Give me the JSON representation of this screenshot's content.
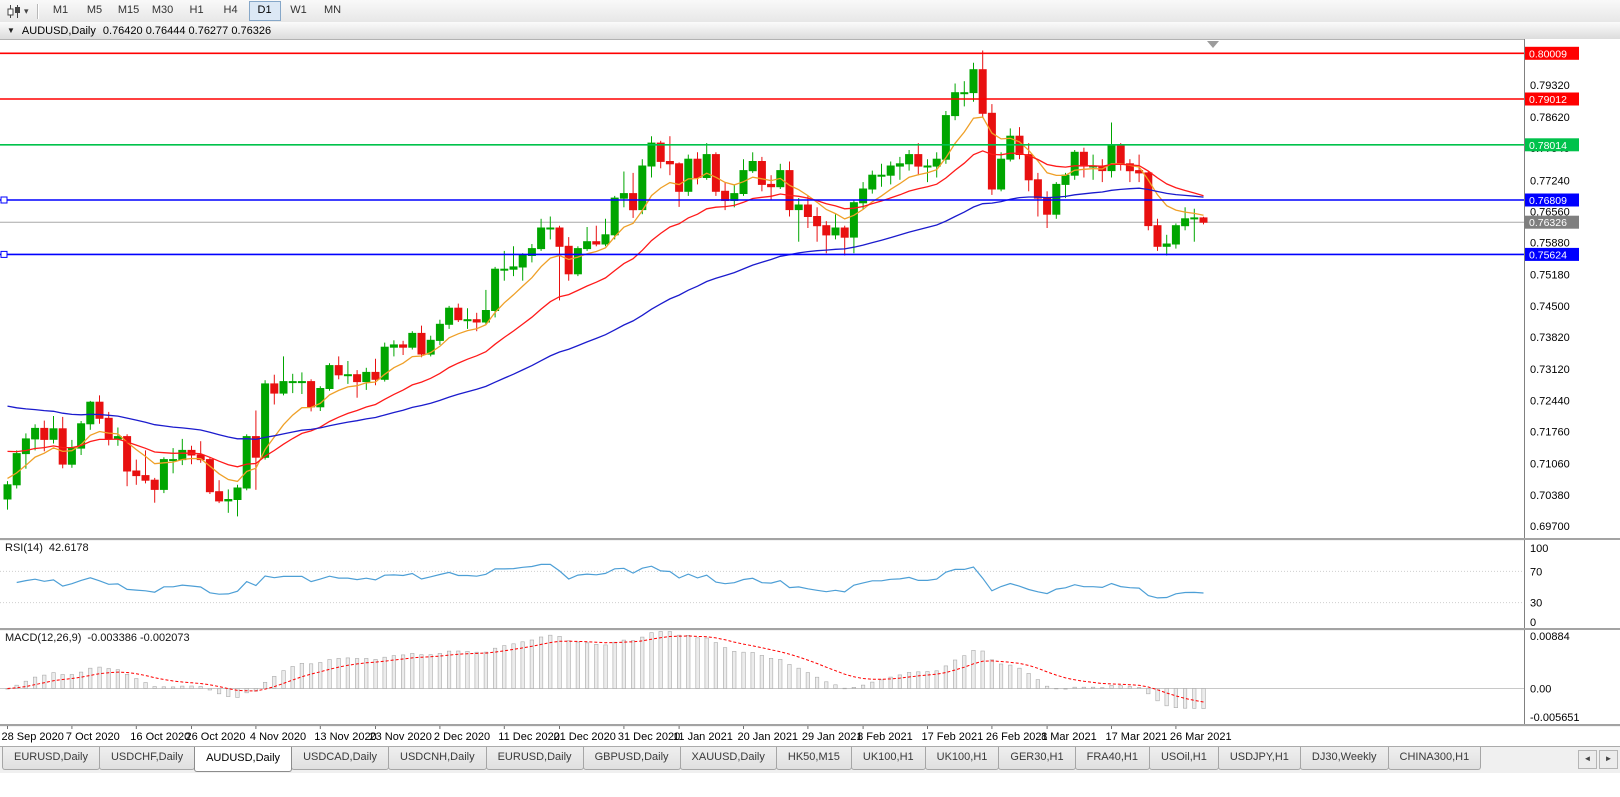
{
  "toolbar": {
    "timeframes": [
      "M1",
      "M5",
      "M15",
      "M30",
      "H1",
      "H4",
      "D1",
      "W1",
      "MN"
    ],
    "active_timeframe": "D1"
  },
  "chart_window": {
    "title": "AUDUSD,Daily",
    "ohlc_text": "0.76420 0.76444 0.76277 0.76326"
  },
  "chart_data": {
    "type": "candlestick",
    "symbol": "AUDUSD",
    "period": "Daily",
    "price_range": {
      "max": 0.8032,
      "min": 0.6944
    },
    "price_axis_ticks": [
      "0.79320",
      "0.78620",
      "0.77940",
      "0.77240",
      "0.76560",
      "0.75880",
      "0.75180",
      "0.74500",
      "0.73820",
      "0.73120",
      "0.72440",
      "0.71760",
      "0.71060",
      "0.70380",
      "0.69700"
    ],
    "x_axis_labels": [
      {
        "index": 0,
        "text": "28 Sep 2020"
      },
      {
        "index": 7,
        "text": "7 Oct 2020"
      },
      {
        "index": 14,
        "text": "16 Oct 2020"
      },
      {
        "index": 20,
        "text": "26 Oct 2020"
      },
      {
        "index": 27,
        "text": "4 Nov 2020"
      },
      {
        "index": 34,
        "text": "13 Nov 2020"
      },
      {
        "index": 40,
        "text": "23 Nov 2020"
      },
      {
        "index": 47,
        "text": "2 Dec 2020"
      },
      {
        "index": 54,
        "text": "11 Dec 2020"
      },
      {
        "index": 60,
        "text": "21 Dec 2020"
      },
      {
        "index": 67,
        "text": "31 Dec 2020"
      },
      {
        "index": 73,
        "text": "11 Jan 2021"
      },
      {
        "index": 80,
        "text": "20 Jan 2021"
      },
      {
        "index": 87,
        "text": "29 Jan 2021"
      },
      {
        "index": 93,
        "text": "8 Feb 2021"
      },
      {
        "index": 100,
        "text": "17 Feb 2021"
      },
      {
        "index": 107,
        "text": "26 Feb 2021"
      },
      {
        "index": 113,
        "text": "8 Mar 2021"
      },
      {
        "index": 120,
        "text": "17 Mar 2021"
      },
      {
        "index": 127,
        "text": "26 Mar 2021"
      }
    ],
    "horizontal_levels": [
      {
        "price": 0.80009,
        "label": "0.80009",
        "color": "#FF0000",
        "handles": false
      },
      {
        "price": 0.79012,
        "label": "0.79012",
        "color": "#FF0000",
        "handles": false
      },
      {
        "price": 0.78014,
        "label": "0.78014",
        "color": "#00C24B",
        "handles": false
      },
      {
        "price": 0.76809,
        "label": "0.76809",
        "color": "#0000FF",
        "handles": true
      },
      {
        "price": 0.75624,
        "label": "0.75624",
        "color": "#0000FF",
        "handles": true
      }
    ],
    "bid_price": {
      "value": 0.76326,
      "label": "0.76326"
    },
    "moving_averages": [
      {
        "period": 8,
        "color": "#EFA028",
        "seed": 0.7078
      },
      {
        "period": 21,
        "color": "#FF1A1A",
        "seed": 0.714
      },
      {
        "period": 55,
        "color": "#1B1BCD",
        "seed": 0.7238
      }
    ],
    "candles_ohlc": [
      [
        0.7029,
        0.7068,
        0.7006,
        0.706
      ],
      [
        0.706,
        0.7135,
        0.7052,
        0.7128
      ],
      [
        0.7128,
        0.7172,
        0.7095,
        0.716
      ],
      [
        0.716,
        0.7192,
        0.7135,
        0.7183
      ],
      [
        0.7183,
        0.72,
        0.7133,
        0.7159
      ],
      [
        0.7159,
        0.721,
        0.715,
        0.7182
      ],
      [
        0.7182,
        0.7208,
        0.7096,
        0.7105
      ],
      [
        0.7105,
        0.7158,
        0.7097,
        0.714
      ],
      [
        0.714,
        0.7199,
        0.7125,
        0.7193
      ],
      [
        0.7193,
        0.7243,
        0.718,
        0.724
      ],
      [
        0.724,
        0.7255,
        0.7193,
        0.7205
      ],
      [
        0.7205,
        0.7219,
        0.7146,
        0.716
      ],
      [
        0.716,
        0.7185,
        0.7145,
        0.7165
      ],
      [
        0.7165,
        0.717,
        0.7057,
        0.709
      ],
      [
        0.709,
        0.7115,
        0.706,
        0.708
      ],
      [
        0.708,
        0.7135,
        0.7063,
        0.707
      ],
      [
        0.707,
        0.7075,
        0.7021,
        0.705
      ],
      [
        0.705,
        0.712,
        0.7042,
        0.7115
      ],
      [
        0.7115,
        0.714,
        0.7085,
        0.7115
      ],
      [
        0.7115,
        0.716,
        0.7103,
        0.7135
      ],
      [
        0.7135,
        0.7145,
        0.7105,
        0.7125
      ],
      [
        0.7125,
        0.7155,
        0.7108,
        0.7115
      ],
      [
        0.7115,
        0.712,
        0.704,
        0.7045
      ],
      [
        0.7045,
        0.707,
        0.702,
        0.7025
      ],
      [
        0.7025,
        0.705,
        0.6999,
        0.7028
      ],
      [
        0.7028,
        0.706,
        0.6991,
        0.7053
      ],
      [
        0.7053,
        0.717,
        0.7048,
        0.7165
      ],
      [
        0.7165,
        0.7222,
        0.7049,
        0.712
      ],
      [
        0.712,
        0.7288,
        0.7115,
        0.728
      ],
      [
        0.728,
        0.73,
        0.7235,
        0.726
      ],
      [
        0.726,
        0.734,
        0.7255,
        0.7285
      ],
      [
        0.7285,
        0.7302,
        0.726,
        0.7285
      ],
      [
        0.7285,
        0.7305,
        0.7258,
        0.7285
      ],
      [
        0.7285,
        0.729,
        0.722,
        0.723
      ],
      [
        0.723,
        0.7275,
        0.7221,
        0.727
      ],
      [
        0.727,
        0.7325,
        0.7265,
        0.732
      ],
      [
        0.732,
        0.734,
        0.729,
        0.73
      ],
      [
        0.73,
        0.733,
        0.728,
        0.73
      ],
      [
        0.73,
        0.731,
        0.725,
        0.7285
      ],
      [
        0.7285,
        0.7315,
        0.7267,
        0.7305
      ],
      [
        0.7305,
        0.7335,
        0.7277,
        0.729
      ],
      [
        0.729,
        0.737,
        0.7285,
        0.736
      ],
      [
        0.736,
        0.7375,
        0.734,
        0.7365
      ],
      [
        0.7365,
        0.7374,
        0.7343,
        0.736
      ],
      [
        0.736,
        0.7395,
        0.7355,
        0.739
      ],
      [
        0.739,
        0.7407,
        0.7338,
        0.7345
      ],
      [
        0.7345,
        0.7385,
        0.734,
        0.7375
      ],
      [
        0.7375,
        0.742,
        0.7365,
        0.741
      ],
      [
        0.741,
        0.745,
        0.74,
        0.7445
      ],
      [
        0.7445,
        0.7455,
        0.7415,
        0.742
      ],
      [
        0.742,
        0.7445,
        0.74,
        0.742
      ],
      [
        0.742,
        0.7435,
        0.7395,
        0.7415
      ],
      [
        0.7415,
        0.7485,
        0.741,
        0.744
      ],
      [
        0.744,
        0.7535,
        0.7425,
        0.753
      ],
      [
        0.753,
        0.757,
        0.7505,
        0.753
      ],
      [
        0.753,
        0.758,
        0.7515,
        0.7535
      ],
      [
        0.7535,
        0.7565,
        0.7505,
        0.756
      ],
      [
        0.756,
        0.7585,
        0.7545,
        0.7575
      ],
      [
        0.7575,
        0.764,
        0.757,
        0.762
      ],
      [
        0.762,
        0.7645,
        0.7595,
        0.762
      ],
      [
        0.762,
        0.7625,
        0.7462,
        0.758
      ],
      [
        0.758,
        0.76,
        0.7505,
        0.752
      ],
      [
        0.752,
        0.758,
        0.7515,
        0.7575
      ],
      [
        0.7575,
        0.7622,
        0.757,
        0.759
      ],
      [
        0.759,
        0.7625,
        0.758,
        0.7585
      ],
      [
        0.7585,
        0.764,
        0.758,
        0.7605
      ],
      [
        0.7605,
        0.769,
        0.7595,
        0.7685
      ],
      [
        0.7685,
        0.7743,
        0.7665,
        0.7695
      ],
      [
        0.7695,
        0.774,
        0.7642,
        0.766
      ],
      [
        0.766,
        0.777,
        0.765,
        0.7755
      ],
      [
        0.7755,
        0.782,
        0.773,
        0.7805
      ],
      [
        0.7805,
        0.781,
        0.775,
        0.7765
      ],
      [
        0.7765,
        0.782,
        0.7735,
        0.776
      ],
      [
        0.776,
        0.7763,
        0.7666,
        0.77
      ],
      [
        0.77,
        0.778,
        0.769,
        0.777
      ],
      [
        0.777,
        0.7785,
        0.7715,
        0.773
      ],
      [
        0.773,
        0.7805,
        0.7725,
        0.778
      ],
      [
        0.778,
        0.7785,
        0.769,
        0.77
      ],
      [
        0.77,
        0.772,
        0.7659,
        0.768
      ],
      [
        0.768,
        0.7715,
        0.7665,
        0.7695
      ],
      [
        0.7695,
        0.777,
        0.769,
        0.7745
      ],
      [
        0.7745,
        0.7785,
        0.774,
        0.7765
      ],
      [
        0.7765,
        0.7775,
        0.77,
        0.7715
      ],
      [
        0.7715,
        0.7735,
        0.768,
        0.771
      ],
      [
        0.771,
        0.776,
        0.7705,
        0.7745
      ],
      [
        0.7745,
        0.7765,
        0.7645,
        0.766
      ],
      [
        0.766,
        0.7685,
        0.759,
        0.767
      ],
      [
        0.767,
        0.769,
        0.762,
        0.7645
      ],
      [
        0.7645,
        0.7665,
        0.759,
        0.7625
      ],
      [
        0.7625,
        0.7635,
        0.7565,
        0.7605
      ],
      [
        0.7605,
        0.765,
        0.7595,
        0.762
      ],
      [
        0.762,
        0.7625,
        0.756,
        0.76
      ],
      [
        0.76,
        0.768,
        0.7565,
        0.7675
      ],
      [
        0.7675,
        0.772,
        0.766,
        0.7705
      ],
      [
        0.7705,
        0.7745,
        0.7695,
        0.7735
      ],
      [
        0.7735,
        0.776,
        0.771,
        0.7735
      ],
      [
        0.7735,
        0.7765,
        0.7715,
        0.7755
      ],
      [
        0.7755,
        0.7775,
        0.7725,
        0.776
      ],
      [
        0.776,
        0.779,
        0.7745,
        0.778
      ],
      [
        0.778,
        0.7805,
        0.7735,
        0.7755
      ],
      [
        0.7755,
        0.777,
        0.772,
        0.7755
      ],
      [
        0.7755,
        0.7785,
        0.773,
        0.777
      ],
      [
        0.777,
        0.7875,
        0.776,
        0.7865
      ],
      [
        0.7865,
        0.7935,
        0.7855,
        0.7915
      ],
      [
        0.7915,
        0.794,
        0.7885,
        0.7915
      ],
      [
        0.7915,
        0.798,
        0.7895,
        0.7965
      ],
      [
        0.7965,
        0.8007,
        0.786,
        0.787
      ],
      [
        0.787,
        0.789,
        0.7692,
        0.7705
      ],
      [
        0.7705,
        0.7785,
        0.77,
        0.777
      ],
      [
        0.777,
        0.7837,
        0.7765,
        0.782
      ],
      [
        0.782,
        0.784,
        0.777,
        0.778
      ],
      [
        0.778,
        0.7805,
        0.77,
        0.7725
      ],
      [
        0.7725,
        0.774,
        0.7645,
        0.7685
      ],
      [
        0.7685,
        0.77,
        0.762,
        0.765
      ],
      [
        0.765,
        0.772,
        0.764,
        0.7715
      ],
      [
        0.7715,
        0.774,
        0.7685,
        0.7735
      ],
      [
        0.7735,
        0.779,
        0.7725,
        0.7785
      ],
      [
        0.7785,
        0.7795,
        0.773,
        0.7755
      ],
      [
        0.7755,
        0.778,
        0.7725,
        0.7755
      ],
      [
        0.7755,
        0.777,
        0.772,
        0.7745
      ],
      [
        0.7745,
        0.785,
        0.773,
        0.78
      ],
      [
        0.78,
        0.7805,
        0.7745,
        0.776
      ],
      [
        0.776,
        0.777,
        0.772,
        0.7745
      ],
      [
        0.7745,
        0.778,
        0.772,
        0.774
      ],
      [
        0.774,
        0.7745,
        0.7615,
        0.7625
      ],
      [
        0.7625,
        0.764,
        0.757,
        0.758
      ],
      [
        0.758,
        0.7605,
        0.756,
        0.7585
      ],
      [
        0.7585,
        0.763,
        0.7575,
        0.7625
      ],
      [
        0.7625,
        0.7665,
        0.7615,
        0.764
      ],
      [
        0.764,
        0.7662,
        0.759,
        0.7642
      ],
      [
        0.7642,
        0.76444,
        0.76277,
        0.76326
      ]
    ]
  },
  "rsi_panel": {
    "name": "RSI(14)",
    "value": "42.6178",
    "axis_ticks": [
      "100",
      "70",
      "30",
      "0"
    ],
    "levels": [
      70,
      30
    ]
  },
  "macd_panel": {
    "name": "MACD(12,26,9)",
    "values": "-0.003386 -0.002073",
    "axis_ticks": [
      "0.00884",
      "0.00",
      "-0.005651"
    ]
  },
  "bottom_tabs": {
    "active_index": 2,
    "tabs": [
      "EURUSD,Daily",
      "USDCHF,Daily",
      "AUDUSD,Daily",
      "USDCAD,Daily",
      "USDCNH,Daily",
      "EURUSD,Daily",
      "GBPUSD,Daily",
      "XAUUSD,Daily",
      "HK50,M15",
      "UK100,H1",
      "UK100,H1",
      "GER30,H1",
      "FRA40,H1",
      "USOil,H1",
      "USDJPY,H1",
      "DJ30,Weekly",
      "CHINA300,H1"
    ],
    "scroll_left": "◄",
    "scroll_right": "►"
  },
  "colors": {
    "bull": "#00A600",
    "bear": "#E81010",
    "bid_line": "#A8A8A8",
    "bid_box": "#7F7F7F",
    "rsi_line": "#4D9FD6",
    "macd_hist_fill": "#ECECEC",
    "macd_hist_stroke": "#ABABAB",
    "macd_signal": "#FF0000",
    "axis_text": "#000000"
  }
}
